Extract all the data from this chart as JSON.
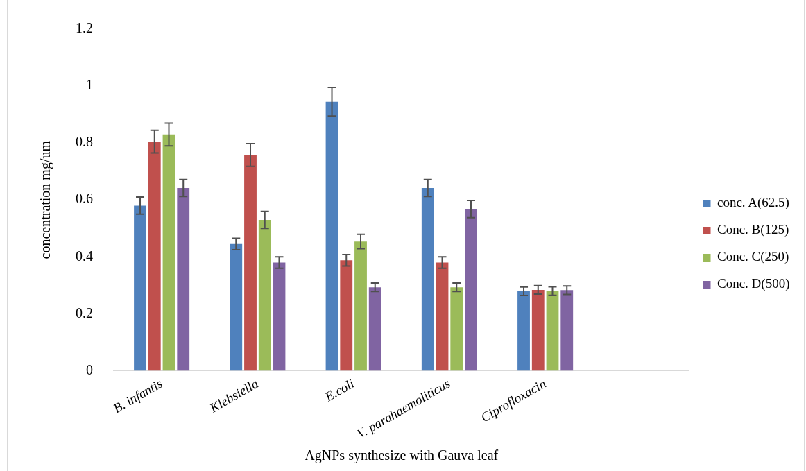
{
  "chart_data": {
    "type": "bar",
    "xlabel": "AgNPs synthesize with Gauva leaf",
    "ylabel": "concentration mg/um",
    "categories": [
      "B. infantis",
      "Klebsiella",
      "E.coli",
      "V. parahaemoliticus",
      "Ciprofloxacin",
      null
    ],
    "ylim": [
      0,
      1.2
    ],
    "yticks": [
      0,
      0.2,
      0.4,
      0.6,
      0.8,
      1,
      1.2
    ],
    "grid": false,
    "legend": "right",
    "series": [
      {
        "name": "conc. A(62.5)",
        "color": "#4f81bd",
        "values": [
          0.58,
          0.445,
          0.945,
          0.642,
          0.279,
          null
        ],
        "errors": [
          0.03,
          0.02,
          0.05,
          0.03,
          0.015,
          null
        ]
      },
      {
        "name": "Conc. B(125)",
        "color": "#c0504d",
        "values": [
          0.805,
          0.758,
          0.388,
          0.38,
          0.284,
          null
        ],
        "errors": [
          0.04,
          0.04,
          0.02,
          0.02,
          0.015,
          null
        ]
      },
      {
        "name": "Conc. C(250)",
        "color": "#9bbb59",
        "values": [
          0.83,
          0.53,
          0.454,
          0.293,
          0.28,
          null
        ],
        "errors": [
          0.04,
          0.03,
          0.025,
          0.015,
          0.015,
          null
        ]
      },
      {
        "name": "Conc. D(500)",
        "color": "#8064a2",
        "values": [
          0.642,
          0.38,
          0.293,
          0.568,
          0.283,
          null
        ],
        "errors": [
          0.03,
          0.02,
          0.015,
          0.03,
          0.015,
          null
        ]
      }
    ]
  }
}
